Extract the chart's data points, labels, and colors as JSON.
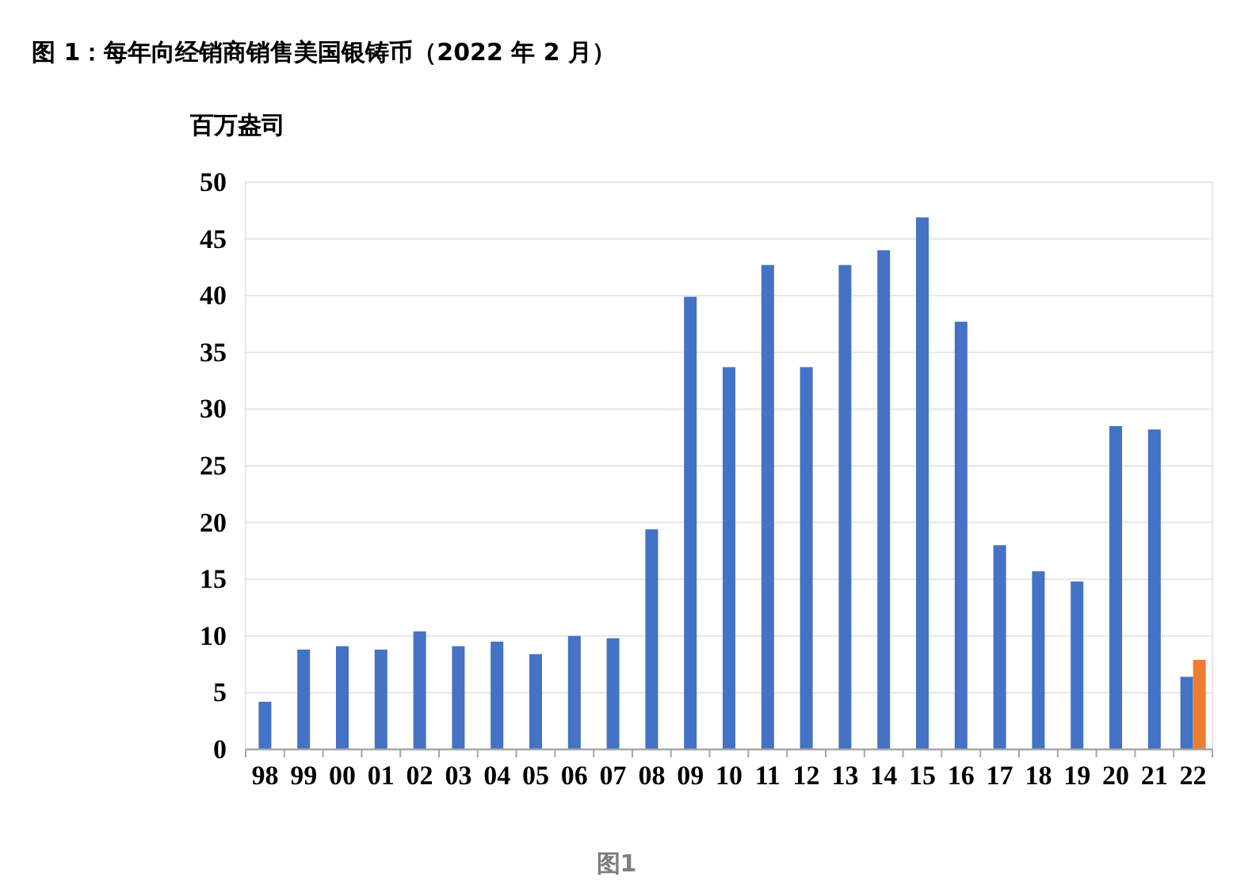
{
  "chart_data": {
    "type": "bar",
    "title": "图 1：每年向经销商销售美国银铸币（2022 年 2 月）",
    "ylabel": "百万盎司",
    "categories": [
      "98",
      "99",
      "00",
      "01",
      "02",
      "03",
      "04",
      "05",
      "06",
      "07",
      "08",
      "09",
      "10",
      "11",
      "12",
      "13",
      "14",
      "15",
      "16",
      "17",
      "18",
      "19",
      "20",
      "21",
      "22"
    ],
    "series": [
      {
        "color": "#4472c4",
        "values": [
          4.2,
          8.8,
          9.1,
          8.8,
          10.4,
          9.1,
          9.5,
          8.4,
          10.0,
          9.8,
          19.4,
          39.9,
          33.7,
          42.7,
          33.7,
          42.7,
          44.0,
          46.9,
          37.7,
          18.0,
          15.7,
          14.8,
          28.5,
          28.2,
          6.4
        ]
      },
      {
        "color": "#ed7d31",
        "values": [
          null,
          null,
          null,
          null,
          null,
          null,
          null,
          null,
          null,
          null,
          null,
          null,
          null,
          null,
          null,
          null,
          null,
          null,
          null,
          null,
          null,
          null,
          null,
          null,
          7.9
        ]
      }
    ],
    "ylim": [
      0,
      50
    ],
    "yticks": [
      0,
      5,
      10,
      15,
      20,
      25,
      30,
      35,
      40,
      45,
      50
    ],
    "grid": "y",
    "annotations": [
      "图1"
    ]
  }
}
